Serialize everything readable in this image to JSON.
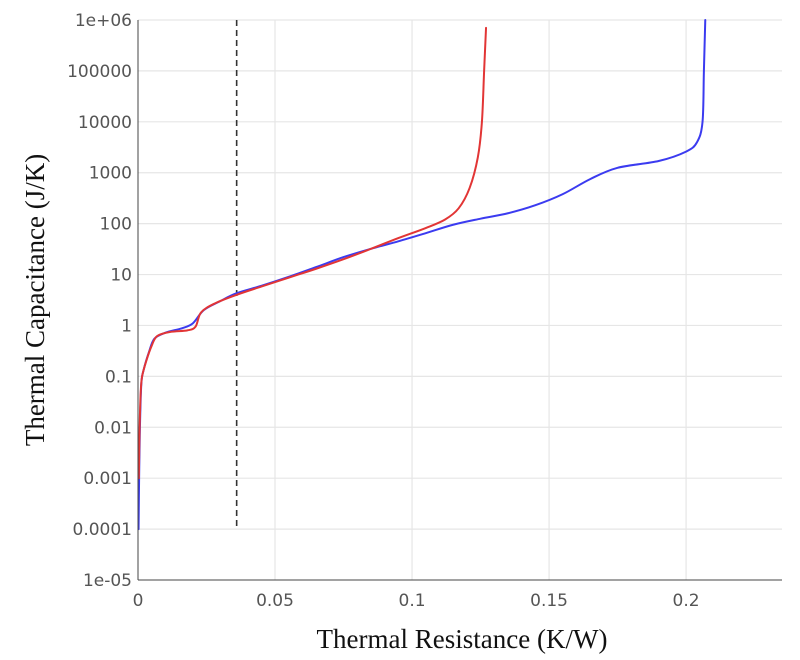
{
  "chart_data": {
    "type": "line",
    "title": "",
    "xlabel": "Thermal Resistance (K/W)",
    "ylabel": "Thermal Capacitance (J/K)",
    "x_scale": "linear",
    "y_scale": "log",
    "xlim": [
      0,
      0.235
    ],
    "ylim": [
      1e-05,
      1000000
    ],
    "grid": true,
    "x_ticks": [
      {
        "value": 0,
        "label": "0"
      },
      {
        "value": 0.05,
        "label": "0.05"
      },
      {
        "value": 0.1,
        "label": "0.1"
      },
      {
        "value": 0.15,
        "label": "0.15"
      },
      {
        "value": 0.2,
        "label": "0.2"
      }
    ],
    "y_ticks": [
      {
        "value": 1e-05,
        "label": "1e-05"
      },
      {
        "value": 0.0001,
        "label": "0.0001"
      },
      {
        "value": 0.001,
        "label": "0.001"
      },
      {
        "value": 0.01,
        "label": "0.01"
      },
      {
        "value": 0.1,
        "label": "0.1"
      },
      {
        "value": 1,
        "label": "1"
      },
      {
        "value": 10,
        "label": "10"
      },
      {
        "value": 100,
        "label": "100"
      },
      {
        "value": 1000,
        "label": "1000"
      },
      {
        "value": 10000,
        "label": "10000"
      },
      {
        "value": 100000,
        "label": "100000"
      },
      {
        "value": 1000000,
        "label": "1e+06"
      }
    ],
    "vertical_line": {
      "x": 0.036,
      "y_range": [
        0.0001,
        1000000
      ],
      "style": "dashed",
      "color": "#333333"
    },
    "series": [
      {
        "name": "blue",
        "color": "#3b3bf0",
        "points": [
          [
            0.0002,
            0.0001
          ],
          [
            0.0004,
            0.001
          ],
          [
            0.0007,
            0.01
          ],
          [
            0.0012,
            0.07
          ],
          [
            0.002,
            0.13
          ],
          [
            0.004,
            0.3
          ],
          [
            0.006,
            0.55
          ],
          [
            0.01,
            0.72
          ],
          [
            0.016,
            0.88
          ],
          [
            0.02,
            1.1
          ],
          [
            0.024,
            2.0
          ],
          [
            0.03,
            3.0
          ],
          [
            0.036,
            4.3
          ],
          [
            0.045,
            6.0
          ],
          [
            0.055,
            9.0
          ],
          [
            0.065,
            14
          ],
          [
            0.075,
            22
          ],
          [
            0.085,
            32
          ],
          [
            0.095,
            45
          ],
          [
            0.105,
            65
          ],
          [
            0.115,
            95
          ],
          [
            0.125,
            125
          ],
          [
            0.135,
            160
          ],
          [
            0.145,
            230
          ],
          [
            0.155,
            380
          ],
          [
            0.165,
            750
          ],
          [
            0.175,
            1250
          ],
          [
            0.19,
            1700
          ],
          [
            0.2,
            2600
          ],
          [
            0.204,
            4000
          ],
          [
            0.206,
            10000
          ],
          [
            0.2065,
            100000
          ],
          [
            0.207,
            1000000
          ]
        ]
      },
      {
        "name": "red",
        "color": "#e23535",
        "points": [
          [
            0.0003,
            0.001
          ],
          [
            0.0006,
            0.01
          ],
          [
            0.001,
            0.05
          ],
          [
            0.0015,
            0.1
          ],
          [
            0.003,
            0.2
          ],
          [
            0.005,
            0.4
          ],
          [
            0.007,
            0.62
          ],
          [
            0.012,
            0.75
          ],
          [
            0.018,
            0.8
          ],
          [
            0.021,
            0.95
          ],
          [
            0.023,
            1.8
          ],
          [
            0.028,
            2.7
          ],
          [
            0.036,
            4.0
          ],
          [
            0.045,
            5.8
          ],
          [
            0.055,
            8.7
          ],
          [
            0.065,
            13
          ],
          [
            0.075,
            20
          ],
          [
            0.085,
            32
          ],
          [
            0.095,
            52
          ],
          [
            0.105,
            82
          ],
          [
            0.112,
            120
          ],
          [
            0.117,
            200
          ],
          [
            0.121,
            500
          ],
          [
            0.124,
            2000
          ],
          [
            0.1255,
            10000
          ],
          [
            0.1263,
            100000
          ],
          [
            0.127,
            700000
          ]
        ]
      }
    ]
  }
}
